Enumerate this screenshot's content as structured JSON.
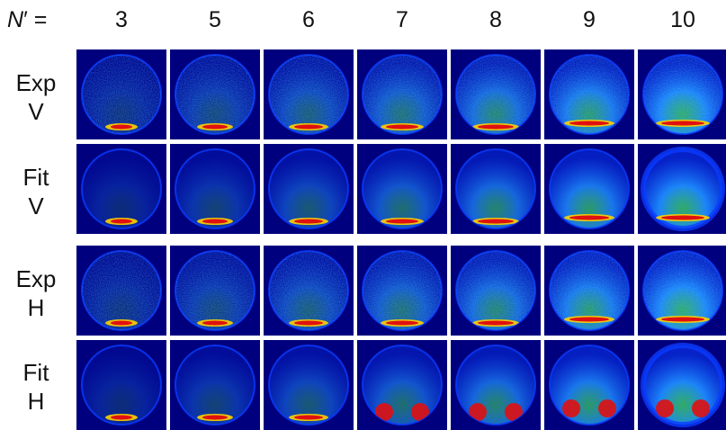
{
  "header": {
    "n_symbol": "N",
    "n_suffix": "′ ="
  },
  "columns": [
    "3",
    "5",
    "6",
    "7",
    "8",
    "9",
    "10"
  ],
  "rows": [
    {
      "line1": "Exp",
      "line2": "V",
      "kind": "exp",
      "pol": "V"
    },
    {
      "line1": "Fit",
      "line2": "V",
      "kind": "fit",
      "pol": "V"
    },
    {
      "line1": "Exp",
      "line2": "H",
      "kind": "exp",
      "pol": "H"
    },
    {
      "line1": "Fit",
      "line2": "H",
      "kind": "fit",
      "pol": "H"
    }
  ],
  "colors": {
    "background": "#00007e",
    "ring": "#0a3cff",
    "fill": "#1e8cff",
    "hot": "#e01010",
    "warm": "#ffd000",
    "green": "#40e060"
  }
}
